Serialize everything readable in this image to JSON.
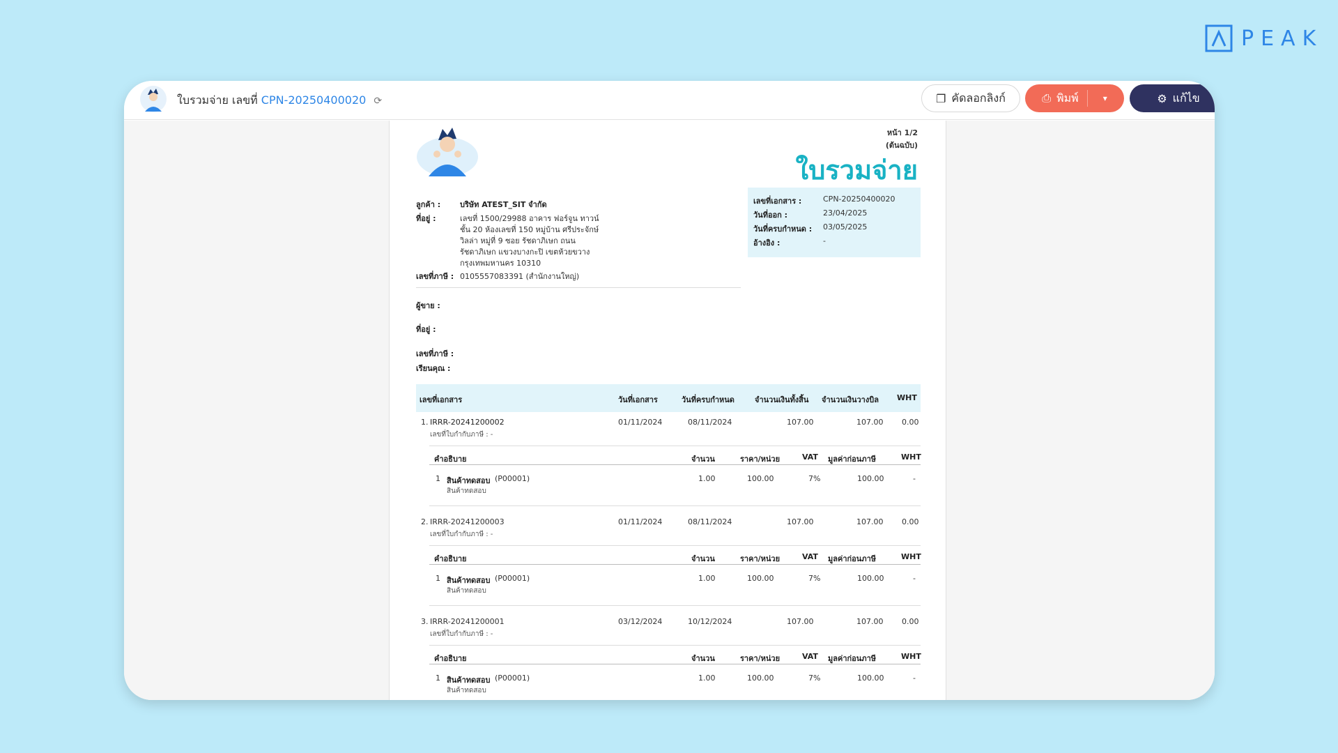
{
  "brand": {
    "name": "PEAK",
    "color": "#2e86e6"
  },
  "toolbar": {
    "doc_type_label": "ใบรวมจ่าย เลขที่",
    "doc_number": "CPN-20250400020",
    "copy_link_label": "คัดลอกลิงก์",
    "print_label": "พิมพ์",
    "edit_label": "แก้ไข"
  },
  "document": {
    "page_label": "หน้า 1/2",
    "original_label": "(ต้นฉบับ)",
    "title": "ใบรวมจ่าย",
    "customer_label": "ลูกค้า :",
    "customer_name": "บริษัท ATEST_SIT จำกัด",
    "address_label": "ที่อยู่ :",
    "address_lines": [
      "เลขที่ 1500/29988 อาคาร ฟอร์จูน ทาวน์",
      "ชั้น 20 ห้องเลขที่ 150 หมู่บ้าน ศรีประจักษ์",
      "วิลล่า หมู่ที่ 9 ซอย รัชดาภิเษก ถนน",
      "รัชดาภิเษก แขวงบางกะปิ เขตห้วยขวาง",
      "กรุงเทพมหานคร 10310"
    ],
    "taxid_label": "เลขที่ภาษี :",
    "taxid_value": "0105557083391 (สำนักงานใหญ่)",
    "meta": {
      "doc_no_label": "เลขที่เอกสาร :",
      "doc_no_value": "CPN-20250400020",
      "issue_label": "วันที่ออก :",
      "issue_value": "23/04/2025",
      "due_label": "วันที่ครบกำหนด :",
      "due_value": "03/05/2025",
      "ref_label": "อ้างอิง :",
      "ref_value": "-"
    },
    "seller_label": "ผู้ขาย :",
    "seller_address_label": "ที่อยู่ :",
    "seller_taxid_label": "เลขที่ภาษี :",
    "attention_label": "เรียนคุณ :",
    "table_headers": [
      "เลขที่เอกสาร",
      "วันที่เอกสาร",
      "วันที่ครบกำหนด",
      "จำนวนเงินทั้งสิ้น",
      "จำนวนเงินวางบิล",
      "WHT"
    ],
    "item_headers": [
      "คำอธิบาย",
      "จำนวน",
      "ราคา/หน่วย",
      "VAT",
      "มูลค่าก่อนภาษี",
      "WHT"
    ],
    "rows": [
      {
        "no": "1.",
        "doc": "IRRR-20241200002",
        "taxinv": "เลขที่ใบกำกับภาษี : -",
        "date": "01/11/2024",
        "due": "08/11/2024",
        "total": "107.00",
        "billed": "107.00",
        "wht": "0.00",
        "item": {
          "idx": "1",
          "name": "สินค้าทดสอบ",
          "code": "(P00001)",
          "desc": "สินค้าทดสอบ",
          "qty": "1.00",
          "price": "100.00",
          "vat": "7%",
          "pretax": "100.00",
          "wht": "-"
        }
      },
      {
        "no": "2.",
        "doc": "IRRR-20241200003",
        "taxinv": "เลขที่ใบกำกับภาษี : -",
        "date": "01/11/2024",
        "due": "08/11/2024",
        "total": "107.00",
        "billed": "107.00",
        "wht": "0.00",
        "item": {
          "idx": "1",
          "name": "สินค้าทดสอบ",
          "code": "(P00001)",
          "desc": "สินค้าทดสอบ",
          "qty": "1.00",
          "price": "100.00",
          "vat": "7%",
          "pretax": "100.00",
          "wht": "-"
        }
      },
      {
        "no": "3.",
        "doc": "IRRR-20241200001",
        "taxinv": "เลขที่ใบกำกับภาษี : -",
        "date": "03/12/2024",
        "due": "10/12/2024",
        "total": "107.00",
        "billed": "107.00",
        "wht": "0.00",
        "item": {
          "idx": "1",
          "name": "สินค้าทดสอบ",
          "code": "(P00001)",
          "desc": "สินค้าทดสอบ",
          "qty": "1.00",
          "price": "100.00",
          "vat": "7%",
          "pretax": "100.00",
          "wht": "-"
        }
      }
    ]
  }
}
